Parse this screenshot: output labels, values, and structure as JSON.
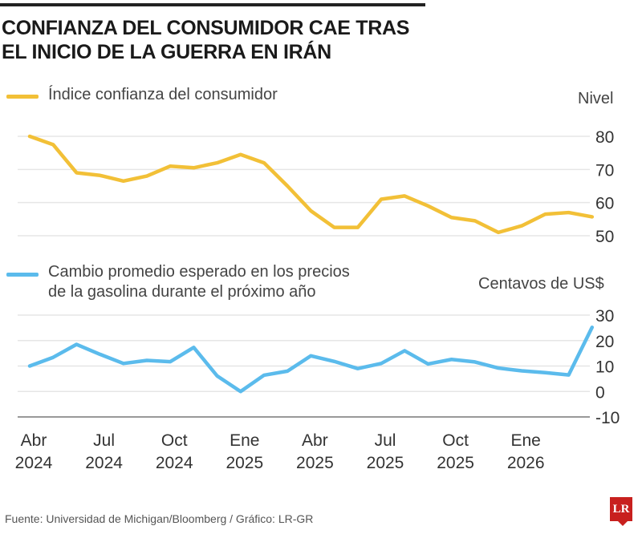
{
  "title_line1": "CONFIANZA DEL CONSUMIDOR CAE TRAS",
  "title_line2": "EL INICIO DE LA GUERRA EN IRÁN",
  "source": "Fuente: Universidad de Michigan/Bloomberg / Gráfico: LR-GR",
  "logo": "LR",
  "chart_data": [
    {
      "type": "line",
      "series": [
        {
          "name": "Índice confianza del consumidor",
          "color": "#f2c037",
          "values": [
            80,
            77.5,
            69,
            68.2,
            66.5,
            68,
            71,
            70.5,
            72,
            74.5,
            72,
            65,
            57.5,
            52.5,
            52.5,
            61,
            62,
            59,
            55.5,
            54.5,
            51,
            53,
            56.5,
            57,
            55.7
          ]
        }
      ],
      "ylabel": "Nivel",
      "ylim": [
        50,
        80
      ],
      "yticks": [
        "80",
        "70",
        "60",
        "50"
      ],
      "grid": true
    },
    {
      "type": "line",
      "series": [
        {
          "name_line1": "Cambio promedio esperado en los precios",
          "name_line2": "de la gasolina durante el próximo año",
          "color": "#5bbbec",
          "values": [
            10,
            13.4,
            18.5,
            14.6,
            11,
            12.2,
            11.7,
            17.3,
            6.1,
            0,
            6.4,
            8,
            14,
            11.8,
            9,
            11,
            16,
            10.8,
            12.6,
            11.6,
            9.2,
            8.1,
            7.4,
            6.5,
            25.2
          ]
        }
      ],
      "ylabel": "Centavos de US$",
      "ylim": [
        -10,
        30
      ],
      "yticks": [
        "30",
        "20",
        "10",
        "0",
        "-10"
      ],
      "grid": true
    }
  ],
  "x_ticks": [
    {
      "month": "Abr",
      "year": "2024"
    },
    {
      "month": "Jul",
      "year": "2024"
    },
    {
      "month": "Oct",
      "year": "2024"
    },
    {
      "month": "Ene",
      "year": "2025"
    },
    {
      "month": "Abr",
      "year": "2025"
    },
    {
      "month": "Jul",
      "year": "2025"
    },
    {
      "month": "Oct",
      "year": "2025"
    },
    {
      "month": "Ene",
      "year": "2026"
    }
  ]
}
